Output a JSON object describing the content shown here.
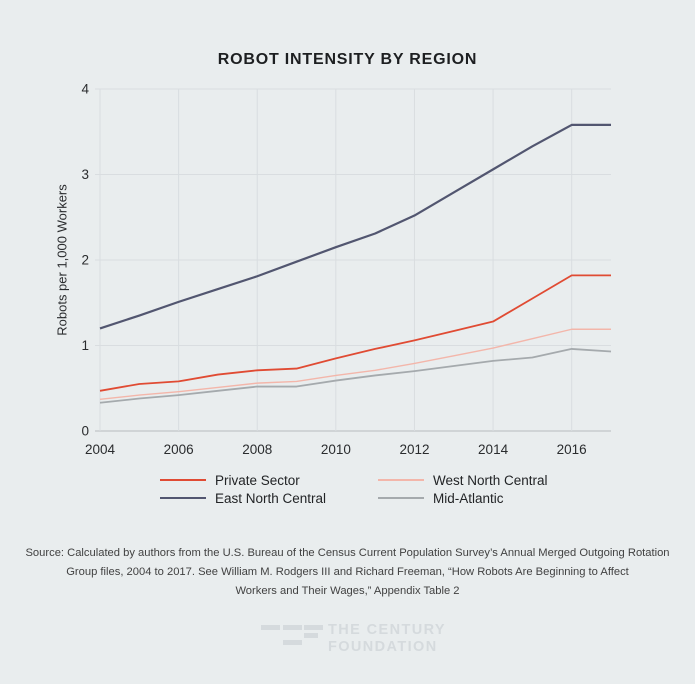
{
  "title": "ROBOT INTENSITY BY REGION",
  "chart_data": {
    "type": "line",
    "title": "ROBOT INTENSITY BY REGION",
    "xlabel": "",
    "ylabel": "Robots per 1,000 Workers",
    "x": [
      2004,
      2005,
      2006,
      2007,
      2008,
      2009,
      2010,
      2011,
      2012,
      2013,
      2014,
      2015,
      2016,
      2017
    ],
    "series": [
      {
        "name": "Private Sector",
        "color": "#e04b33",
        "line_width": 1.8,
        "values": [
          0.47,
          0.55,
          0.58,
          0.66,
          0.71,
          0.73,
          0.85,
          0.96,
          1.06,
          1.17,
          1.28,
          1.55,
          1.82,
          1.82
        ]
      },
      {
        "name": "East North Central",
        "color": "#525670",
        "line_width": 2.2,
        "values": [
          1.2,
          1.35,
          1.51,
          1.66,
          1.81,
          1.98,
          2.15,
          2.31,
          2.52,
          2.79,
          3.06,
          3.33,
          3.58,
          3.58
        ]
      },
      {
        "name": "West North Central",
        "color": "#f3b6aa",
        "line_width": 1.4,
        "values": [
          0.37,
          0.42,
          0.46,
          0.51,
          0.56,
          0.58,
          0.65,
          0.71,
          0.79,
          0.88,
          0.97,
          1.08,
          1.19,
          1.19
        ]
      },
      {
        "name": "Mid-Atlantic",
        "color": "#a5aaad",
        "line_width": 1.8,
        "values": [
          0.33,
          0.38,
          0.42,
          0.47,
          0.52,
          0.52,
          0.59,
          0.65,
          0.7,
          0.76,
          0.82,
          0.86,
          0.96,
          0.93
        ]
      }
    ],
    "xlim": [
      2004,
      2017
    ],
    "ylim": [
      0,
      4
    ],
    "xticks": [
      "2004",
      "2006",
      "2008",
      "2010",
      "2012",
      "2014",
      "2016"
    ],
    "xtick_values": [
      2004,
      2006,
      2008,
      2010,
      2012,
      2014,
      2016
    ],
    "yticks": [
      "0",
      "1",
      "2",
      "3",
      "4"
    ],
    "ytick_values": [
      0,
      1,
      2,
      3,
      4
    ],
    "grid": "on",
    "legend_position": "bottom",
    "legend_columns": [
      [
        0,
        1
      ],
      [
        2,
        3
      ]
    ]
  },
  "source": {
    "line1": "Source:  Calculated by authors from the U.S. Bureau of the Census Current Population Survey’s Annual Merged Outgoing Rotation",
    "line2": "Group files, 2004 to 2017. See William M. Rodgers III and Richard Freeman, “How Robots Are Beginning to Affect",
    "line3": "Workers and Their Wages,” Appendix Table 2"
  },
  "logo": {
    "line1": "THE CENTURY",
    "line2": "FOUNDATION"
  },
  "colors": {
    "background": "#e9edee",
    "gridline": "#d9dde0",
    "baseline": "#b7bbbe",
    "tick_text": "#2a2c2e",
    "title_text": "#1d1f21",
    "source_text": "#414141",
    "logo": "#d5dadd"
  }
}
